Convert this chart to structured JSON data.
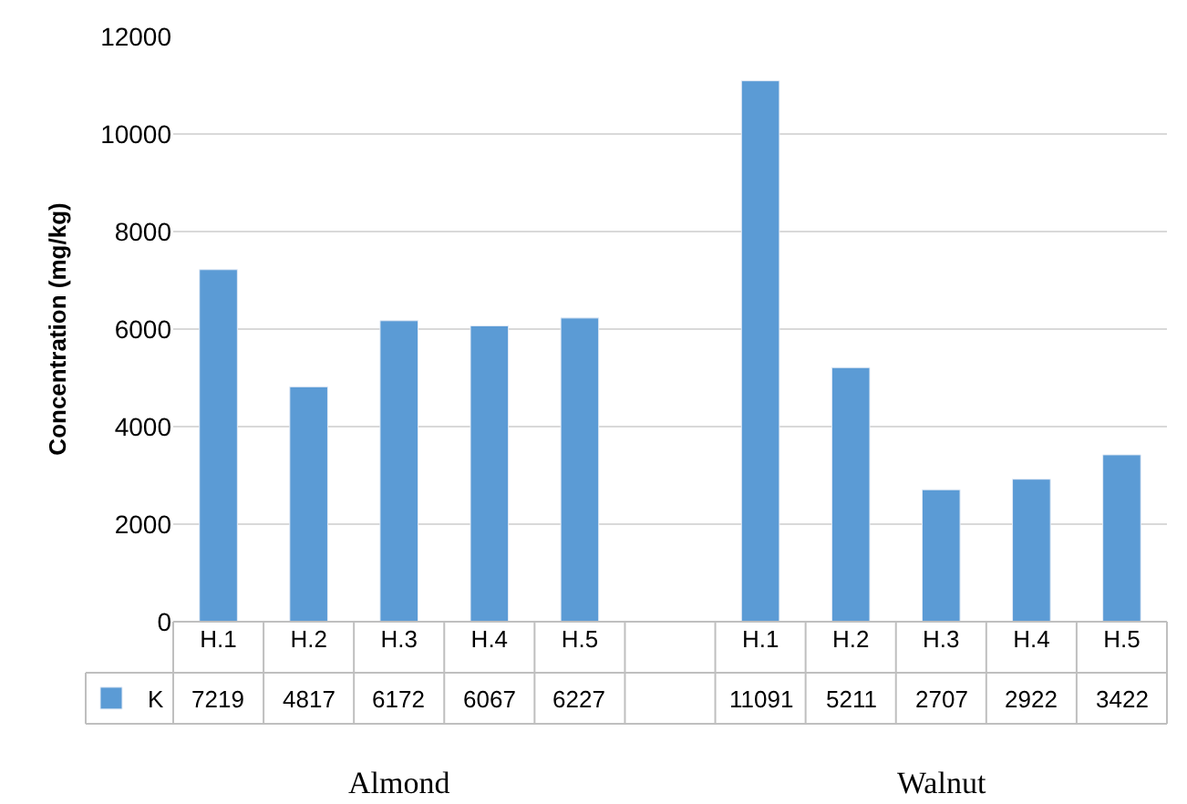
{
  "chart_data": {
    "type": "bar",
    "ylabel": "Concentration (mg/kg)",
    "categories": [
      "H.1",
      "H.2",
      "H.3",
      "H.4",
      "H.5",
      null,
      "H.1",
      "H.2",
      "H.3",
      "H.4",
      "H.5"
    ],
    "series": [
      {
        "name": "K",
        "color": "#5b9bd5",
        "values": [
          7219,
          4817,
          6172,
          6067,
          6227,
          null,
          11091,
          5211,
          2707,
          2922,
          3422
        ]
      }
    ],
    "ylim": [
      0,
      12000
    ],
    "yticks": [
      0,
      2000,
      4000,
      6000,
      8000,
      10000,
      12000
    ],
    "grid": "y",
    "legend": "bottom left",
    "data_labels": true,
    "annotations": [
      "Almond",
      "Walnut"
    ]
  }
}
